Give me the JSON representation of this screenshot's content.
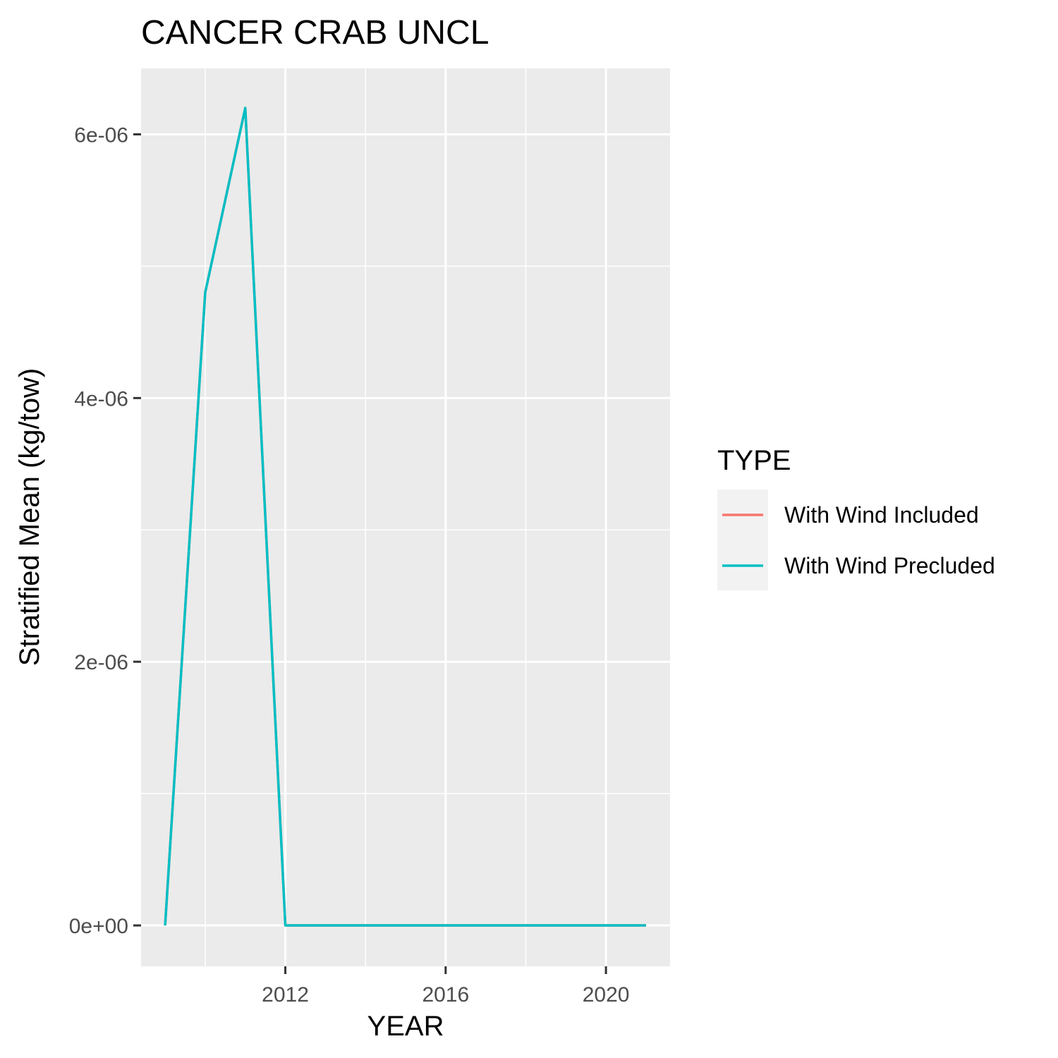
{
  "chart_data": {
    "type": "line",
    "title": "CANCER CRAB UNCL",
    "xlabel": "YEAR",
    "ylabel": "Stratified Mean (kg/tow)",
    "x": [
      2009,
      2010,
      2011,
      2012,
      2013,
      2014,
      2015,
      2016,
      2017,
      2018,
      2019,
      2020,
      2021
    ],
    "series": [
      {
        "name": "With Wind Included",
        "color": "#F8766D",
        "values": [
          0,
          4.8e-06,
          6.2e-06,
          0,
          0,
          0,
          0,
          0,
          0,
          0,
          0,
          0,
          0
        ]
      },
      {
        "name": "With Wind Precluded",
        "color": "#00BFC4",
        "values": [
          0,
          4.8e-06,
          6.2e-06,
          0,
          0,
          0,
          0,
          0,
          0,
          0,
          0,
          0,
          0
        ]
      }
    ],
    "xlim": [
      2008.4,
      2021.6
    ],
    "ylim": [
      -3.1e-07,
      6.5e-06
    ],
    "x_ticks": [
      2012,
      2016,
      2020
    ],
    "x_tick_labels": [
      "2012",
      "2016",
      "2020"
    ],
    "x_minor_ticks": [
      2010,
      2014,
      2018
    ],
    "y_ticks": [
      0,
      2e-06,
      4e-06,
      6e-06
    ],
    "y_tick_labels": [
      "0e+00",
      "2e-06",
      "4e-06",
      "6e-06"
    ],
    "y_minor_ticks": [
      1e-06,
      3e-06,
      5e-06
    ],
    "grid": true,
    "legend": {
      "title": "TYPE",
      "position": "right"
    },
    "colors": {
      "panel_background": "#EBEBEB",
      "grid_line": "#FFFFFF",
      "legend_key_background": "#F2F2F2"
    }
  }
}
